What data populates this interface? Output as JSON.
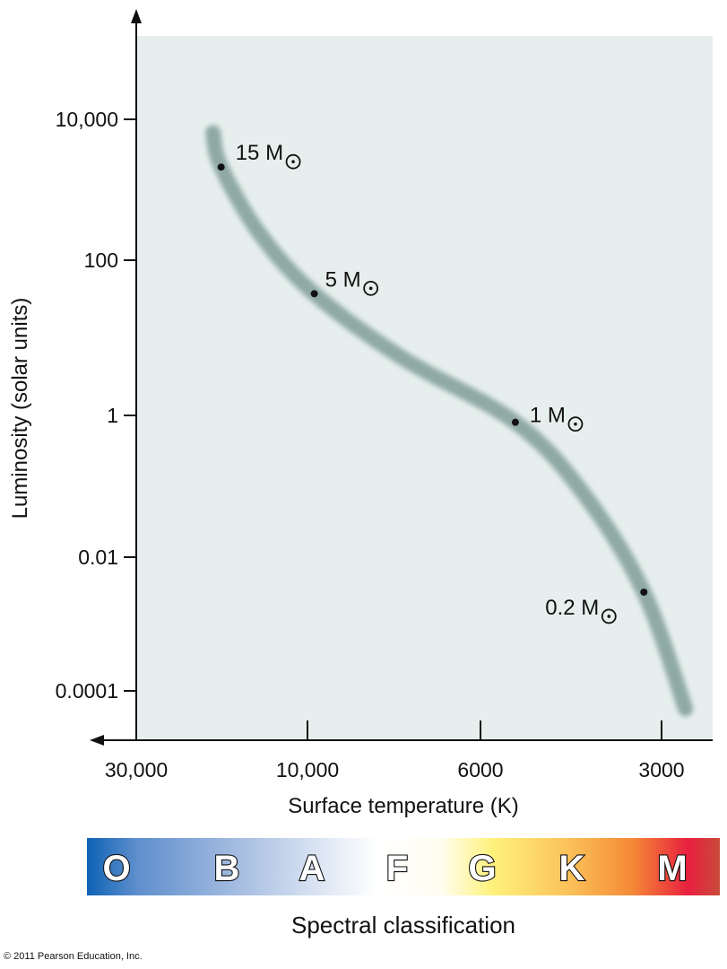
{
  "chart_data": {
    "type": "line",
    "title": "",
    "xlabel": "Surface temperature (K)",
    "ylabel": "Luminosity (solar units)",
    "x_scale": "log-reversed",
    "y_scale": "log",
    "x_ticks": [
      {
        "value": 30000,
        "label": "30,000"
      },
      {
        "value": 10000,
        "label": "10,000"
      },
      {
        "value": 6000,
        "label": "6000"
      },
      {
        "value": 3000,
        "label": "3000"
      }
    ],
    "y_ticks": [
      {
        "value": 10000,
        "label": "10,000"
      },
      {
        "value": 100,
        "label": "100"
      },
      {
        "value": 1,
        "label": "1"
      },
      {
        "value": 0.01,
        "label": "0.01"
      },
      {
        "value": 0.0001,
        "label": "0.0001"
      }
    ],
    "main_sequence_band": [
      {
        "T": 18340,
        "L": 6450
      },
      {
        "T": 17400,
        "L": 2100
      },
      {
        "T": 13600,
        "L": 240
      },
      {
        "T": 9800,
        "L": 37
      },
      {
        "T": 7535,
        "L": 5.4
      },
      {
        "T": 5250,
        "L": 0.8
      },
      {
        "T": 4044,
        "L": 0.079
      },
      {
        "T": 3210,
        "L": 0.003
      },
      {
        "T": 2738,
        "L": 5.4e-05
      }
    ],
    "points": [
      {
        "label": "15 M",
        "T": 17400,
        "L": 2100
      },
      {
        "label": "5 M",
        "T": 9800,
        "L": 37
      },
      {
        "label": "1 M",
        "T": 5250,
        "L": 0.8
      },
      {
        "label": "0.2 M",
        "T": 3210,
        "L": 0.003
      }
    ],
    "grid": false,
    "colors": {
      "background": "#e6efed",
      "band": "#8fa9a4",
      "axis": "#111111"
    }
  },
  "spectral_bar": {
    "label": "Spectral classification",
    "classes": [
      "O",
      "B",
      "A",
      "F",
      "G",
      "K",
      "M"
    ]
  },
  "copyright": "© 2011 Pearson Education, Inc."
}
